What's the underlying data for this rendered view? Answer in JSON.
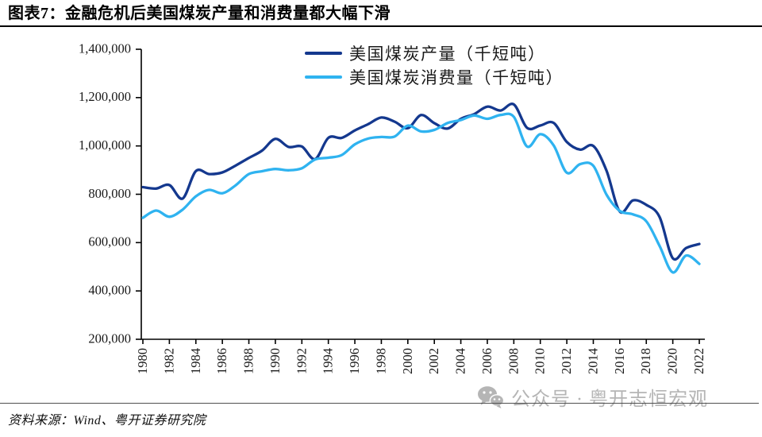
{
  "header": {
    "title": "图表7：金融危机后美国煤炭产量和消费量都大幅下滑"
  },
  "chart_data": {
    "type": "line",
    "title": "图表7：金融危机后美国煤炭产量和消费量都大幅下滑",
    "xlabel": "",
    "ylabel": "",
    "unit": "千短吨",
    "grid": false,
    "legend_position": "top-center",
    "ylim": [
      200000,
      1400000
    ],
    "y_tick_step": 200000,
    "x_tick_step": 2,
    "x": [
      1980,
      1981,
      1982,
      1983,
      1984,
      1985,
      1986,
      1987,
      1988,
      1989,
      1990,
      1991,
      1992,
      1993,
      1994,
      1995,
      1996,
      1997,
      1998,
      1999,
      2000,
      2001,
      2002,
      2003,
      2004,
      2005,
      2006,
      2007,
      2008,
      2009,
      2010,
      2011,
      2012,
      2013,
      2014,
      2015,
      2016,
      2017,
      2018,
      2019,
      2020,
      2021,
      2022
    ],
    "series": [
      {
        "name": "美国煤炭产量（千短吨）",
        "color": "#14388E",
        "values": [
          829700,
          823775,
          838112,
          782091,
          895921,
          883638,
          890315,
          918762,
          950265,
          980729,
          1029076,
          995984,
          997545,
          945424,
          1033504,
          1032974,
          1063856,
          1089932,
          1117535,
          1100431,
          1073612,
          1127689,
          1094283,
          1071753,
          1112099,
          1131498,
          1162750,
          1146635,
          1171809,
          1074923,
          1084368,
          1095628,
          1016458,
          984842,
          1000049,
          896941,
          728364,
          774609,
          756167,
          706309,
          535434,
          577387,
          594152
        ]
      },
      {
        "name": "美国煤炭消费量（千短吨）",
        "color": "#2FB3F0",
        "values": [
          702730,
          732627,
          706911,
          736672,
          791296,
          818049,
          804231,
          836941,
          883642,
          895363,
          904498,
          899261,
          907655,
          944081,
          951116,
          962104,
          1006321,
          1030453,
          1037103,
          1038646,
          1084095,
          1060146,
          1066355,
          1094861,
          1107255,
          1125978,
          1112292,
          1127998,
          1120548,
          997478,
          1048514,
          1002948,
          889185,
          924442,
          917736,
          798121,
          731071,
          716856,
          688104,
          586507,
          476693,
          546280,
          512000
        ]
      }
    ]
  },
  "footer": {
    "source": "资料来源：Wind、粤开证券研究院",
    "watermark_text": "公众号 · 粤开志恒宏观",
    "watermark_icon": "wechat-icon"
  }
}
